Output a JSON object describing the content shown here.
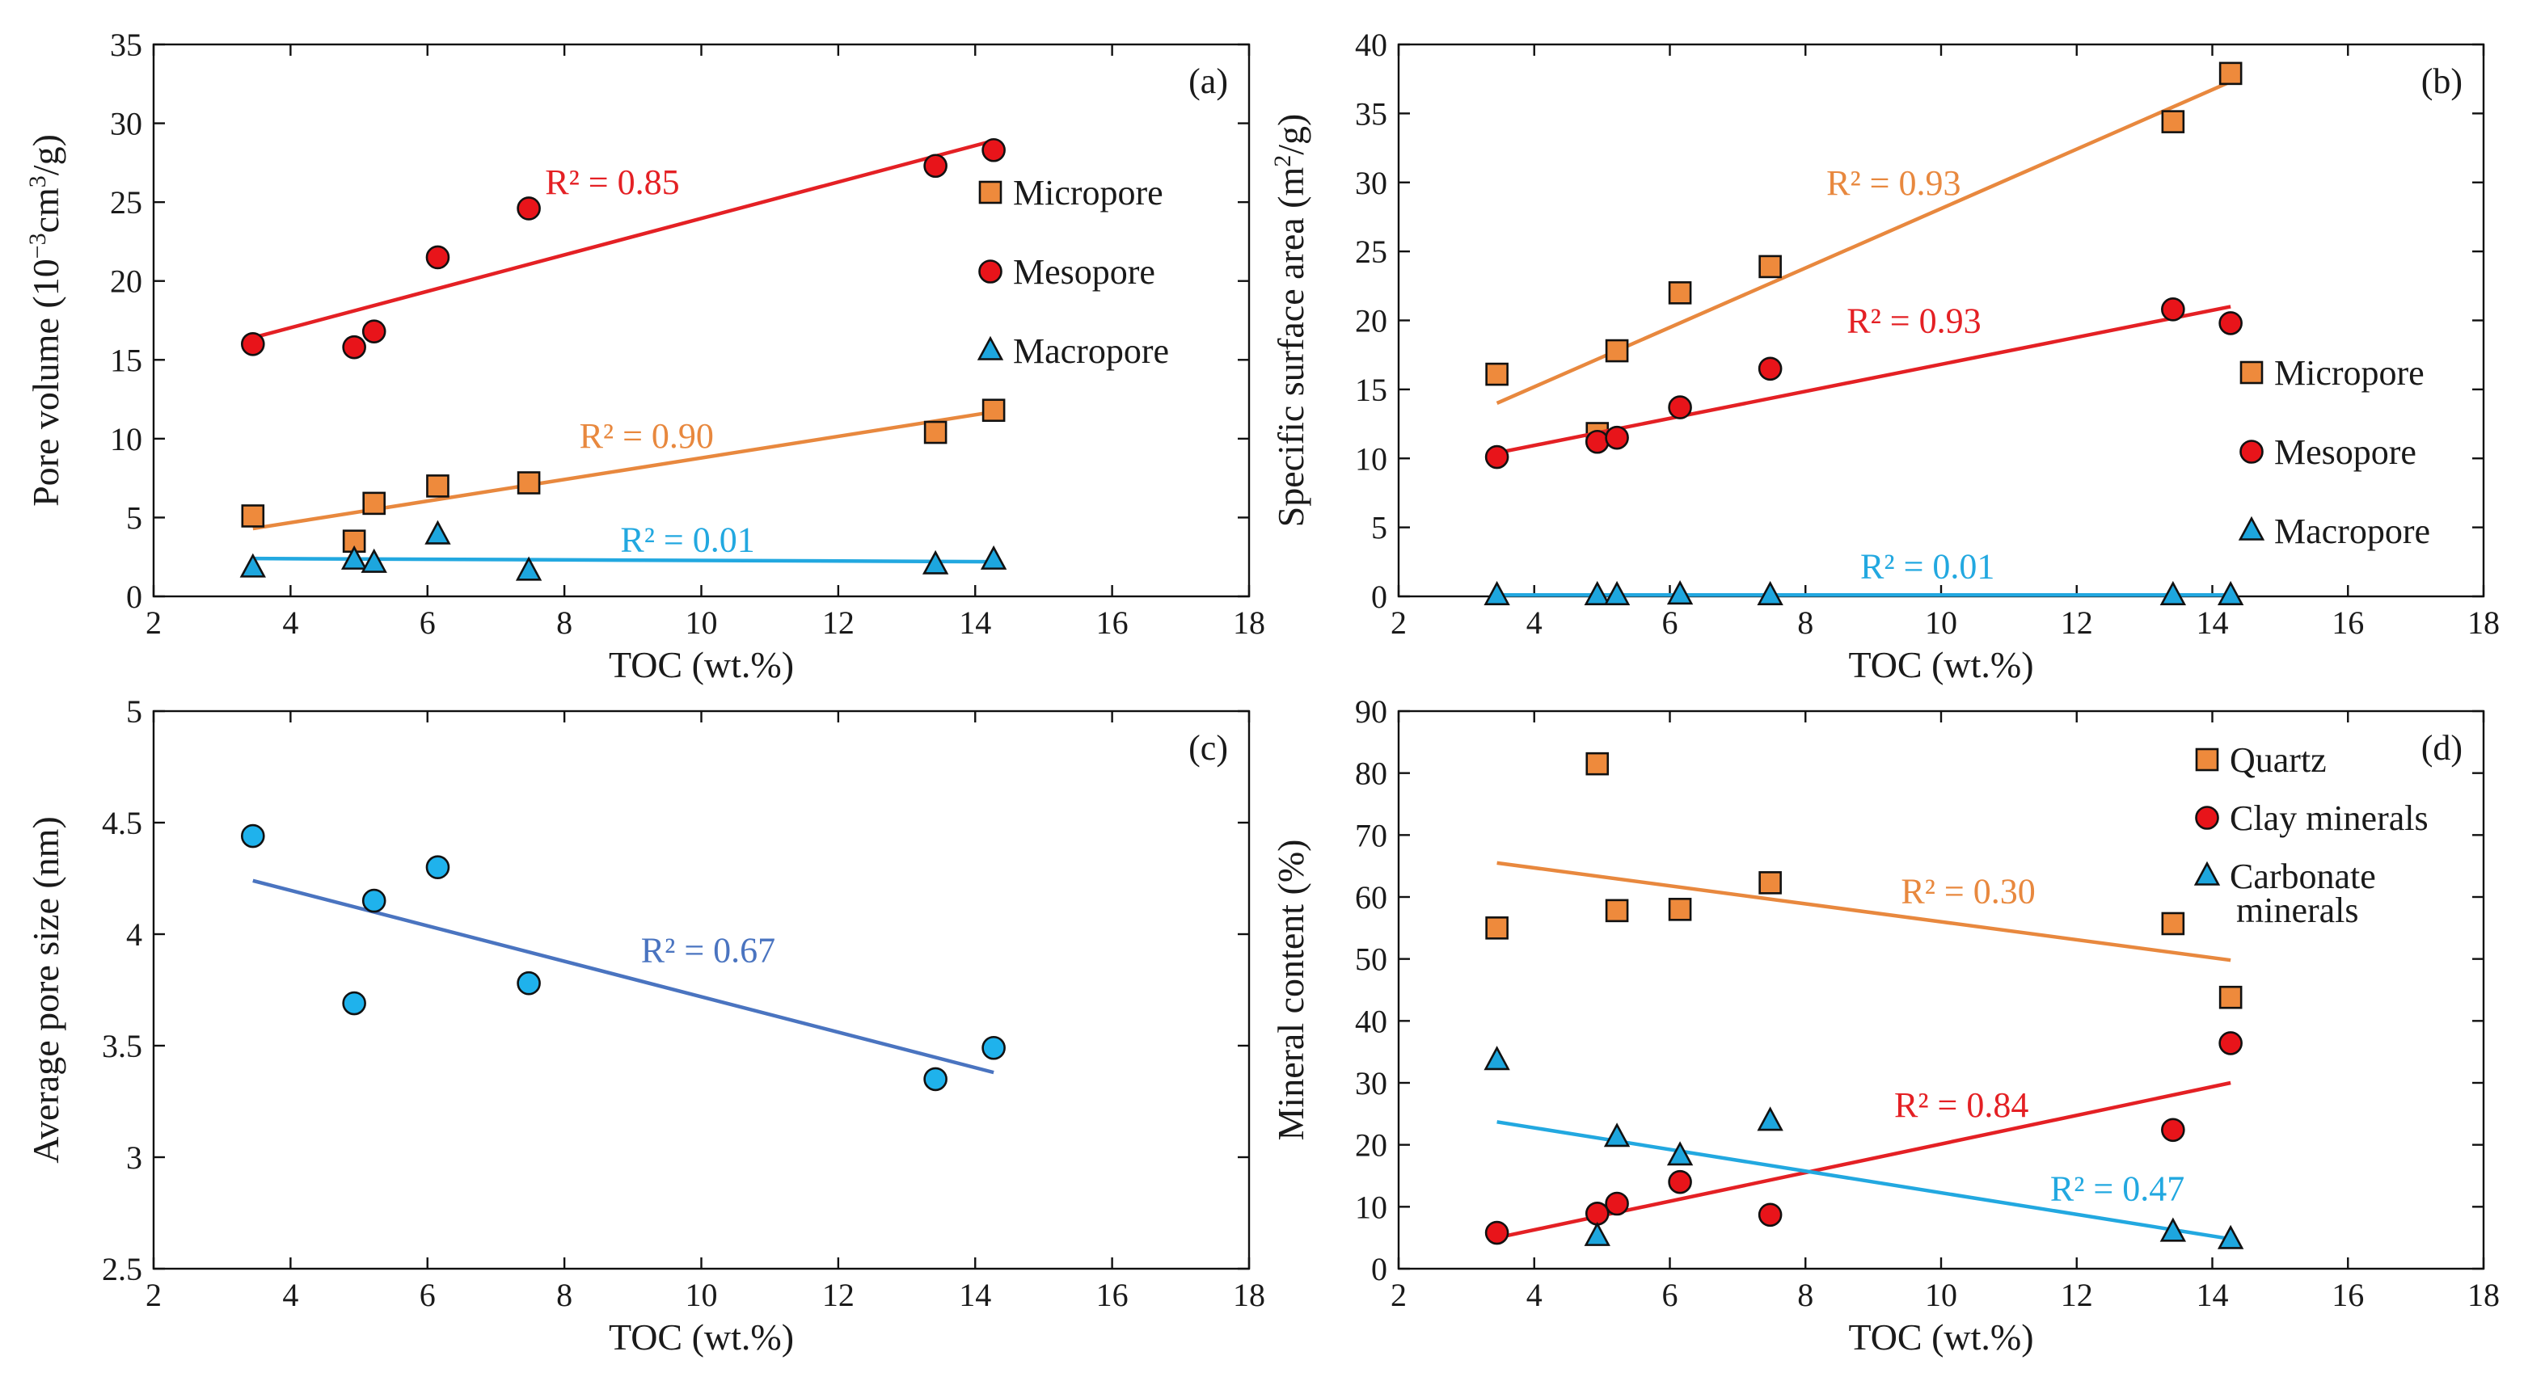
{
  "chart_data": [
    {
      "type": "scatter",
      "panel_label": "(a)",
      "title": "",
      "xlabel": "TOC (wt.%)",
      "ylabel": "Pore volume (10⁻³cm³/g)",
      "xlim": [
        2,
        18
      ],
      "ylim": [
        0,
        35
      ],
      "xticks": [
        2,
        4,
        6,
        8,
        10,
        12,
        14,
        16,
        18
      ],
      "yticks": [
        0,
        5,
        10,
        15,
        20,
        25,
        30,
        35
      ],
      "legend": "right",
      "series": [
        {
          "name": "Micropore",
          "marker": "square",
          "color": "#ee8a3c",
          "line_color": "#e8883e",
          "x": [
            3.45,
            4.93,
            5.22,
            6.15,
            7.48,
            13.42,
            14.27
          ],
          "y": [
            5.1,
            3.5,
            5.9,
            7.0,
            7.2,
            10.4,
            11.8
          ],
          "trend": {
            "x": [
              3.45,
              14.27
            ],
            "y": [
              4.3,
              11.7
            ]
          },
          "r2": {
            "text": "R² = 0.90",
            "x": 9.2,
            "y": 10.2
          }
        },
        {
          "name": "Mesopore",
          "marker": "circle",
          "color": "#e8141a",
          "line_color": "#e42024",
          "x": [
            3.45,
            4.93,
            5.22,
            6.15,
            7.48,
            13.42,
            14.27
          ],
          "y": [
            16.0,
            15.8,
            16.8,
            21.5,
            24.6,
            27.3,
            28.3
          ],
          "trend": {
            "x": [
              3.45,
              14.27
            ],
            "y": [
              16.4,
              28.9
            ]
          },
          "r2": {
            "text": "R² = 0.85",
            "x": 8.7,
            "y": 26.3
          }
        },
        {
          "name": "Macropore",
          "marker": "triangle",
          "color": "#1da6de",
          "line_color": "#22a8e0",
          "x": [
            3.45,
            4.93,
            5.22,
            6.15,
            7.48,
            13.42,
            14.27
          ],
          "y": [
            1.8,
            2.3,
            2.1,
            3.9,
            1.6,
            2.0,
            2.3
          ],
          "trend": {
            "x": [
              3.45,
              14.27
            ],
            "y": [
              2.4,
              2.2
            ]
          },
          "r2": {
            "text": "R² = 0.01",
            "x": 9.8,
            "y": 3.6
          }
        }
      ]
    },
    {
      "type": "scatter",
      "panel_label": "(b)",
      "title": "",
      "xlabel": "TOC (wt.%)",
      "ylabel": "Specific surface area (m²/g)",
      "xlim": [
        2,
        18
      ],
      "ylim": [
        0,
        40
      ],
      "xticks": [
        2,
        4,
        6,
        8,
        10,
        12,
        14,
        16,
        18
      ],
      "yticks": [
        0,
        5,
        10,
        15,
        20,
        25,
        30,
        35,
        40
      ],
      "legend": "right",
      "series": [
        {
          "name": "Micropore",
          "marker": "square",
          "color": "#ee8a3c",
          "line_color": "#e8883e",
          "x": [
            3.45,
            4.93,
            5.22,
            6.15,
            7.48,
            13.42,
            14.27
          ],
          "y": [
            16.1,
            11.8,
            17.8,
            22.0,
            23.9,
            34.4,
            37.9
          ],
          "trend": {
            "x": [
              3.45,
              14.27
            ],
            "y": [
              14.0,
              37.3
            ]
          },
          "r2": {
            "text": "R² = 0.93",
            "x": 9.3,
            "y": 30.0
          }
        },
        {
          "name": "Mesopore",
          "marker": "circle",
          "color": "#e8141a",
          "line_color": "#e42024",
          "x": [
            3.45,
            4.93,
            5.22,
            6.15,
            7.48,
            13.42,
            14.27
          ],
          "y": [
            10.1,
            11.2,
            11.5,
            13.7,
            16.5,
            20.8,
            19.8
          ],
          "trend": {
            "x": [
              3.45,
              14.27
            ],
            "y": [
              10.4,
              21.0
            ]
          },
          "r2": {
            "text": "R² = 0.93",
            "x": 9.6,
            "y": 20.0
          }
        },
        {
          "name": "Macropore",
          "marker": "triangle",
          "color": "#1da6de",
          "line_color": "#22a8e0",
          "x": [
            3.45,
            4.93,
            5.22,
            6.15,
            7.48,
            13.42,
            14.27
          ],
          "y": [
            0.05,
            0.05,
            0.05,
            0.1,
            0.05,
            0.05,
            0.05
          ],
          "trend": {
            "x": [
              3.45,
              14.27
            ],
            "y": [
              0.1,
              0.1
            ]
          },
          "r2": {
            "text": "R² = 0.01",
            "x": 9.8,
            "y": 2.2
          }
        }
      ]
    },
    {
      "type": "scatter",
      "panel_label": "(c)",
      "title": "",
      "xlabel": "TOC (wt.%)",
      "ylabel": "Average pore size (nm)",
      "xlim": [
        2,
        18
      ],
      "ylim": [
        2.5,
        5
      ],
      "xticks": [
        2,
        4,
        6,
        8,
        10,
        12,
        14,
        16,
        18
      ],
      "yticks": [
        2.5,
        3,
        3.5,
        4,
        4.5,
        5
      ],
      "legend": "none",
      "series": [
        {
          "name": "Average pore size",
          "marker": "circle",
          "color": "#1fb2ec",
          "line_color": "#4a74c0",
          "x": [
            3.45,
            4.93,
            5.22,
            6.15,
            7.48,
            13.42,
            14.27
          ],
          "y": [
            4.44,
            3.69,
            4.15,
            4.3,
            3.78,
            3.35,
            3.49
          ],
          "trend": {
            "x": [
              3.45,
              14.27
            ],
            "y": [
              4.24,
              3.38
            ]
          },
          "r2": {
            "text": "R² = 0.67",
            "x": 10.1,
            "y": 3.93
          }
        }
      ]
    },
    {
      "type": "scatter",
      "panel_label": "(d)",
      "title": "",
      "xlabel": "TOC (wt.%)",
      "ylabel": "Mineral content (%)",
      "xlim": [
        2,
        18
      ],
      "ylim": [
        0,
        90
      ],
      "xticks": [
        2,
        4,
        6,
        8,
        10,
        12,
        14,
        16,
        18
      ],
      "yticks": [
        0,
        10,
        20,
        30,
        40,
        50,
        60,
        70,
        80,
        90
      ],
      "legend": "top-right",
      "series": [
        {
          "name": "Quartz",
          "marker": "square",
          "color": "#ee8a3c",
          "line_color": "#e8883e",
          "x": [
            3.45,
            4.93,
            5.22,
            6.15,
            7.48,
            13.42,
            14.27
          ],
          "y": [
            55.0,
            81.5,
            57.8,
            58.0,
            62.3,
            55.7,
            43.8
          ],
          "trend": {
            "x": [
              3.45,
              14.27
            ],
            "y": [
              65.5,
              49.8
            ]
          },
          "r2": {
            "text": "R² = 0.30",
            "x": 10.4,
            "y": 61.0
          }
        },
        {
          "name": "Clay minerals",
          "marker": "circle",
          "color": "#e8141a",
          "line_color": "#e42024",
          "x": [
            3.45,
            4.93,
            5.22,
            6.15,
            7.48,
            13.42,
            14.27
          ],
          "y": [
            5.8,
            8.9,
            10.5,
            14.0,
            8.7,
            22.4,
            36.4
          ],
          "trend": {
            "x": [
              3.45,
              14.27
            ],
            "y": [
              5.0,
              30.0
            ]
          },
          "r2": {
            "text": "R² = 0.84",
            "x": 10.3,
            "y": 26.5
          }
        },
        {
          "name": "Carbonate minerals",
          "label_lines": [
            "Carbonate",
            "minerals"
          ],
          "marker": "triangle",
          "color": "#1da6de",
          "line_color": "#22a8e0",
          "x": [
            3.45,
            4.93,
            5.22,
            6.15,
            7.48,
            13.42,
            14.27
          ],
          "y": [
            33.6,
            5.2,
            21.2,
            18.2,
            23.8,
            5.9,
            4.7
          ],
          "trend": {
            "x": [
              3.45,
              14.27
            ],
            "y": [
              23.7,
              4.8
            ]
          },
          "r2": {
            "text": "R² = 0.47",
            "x": 12.6,
            "y": 13.0
          }
        }
      ]
    }
  ]
}
